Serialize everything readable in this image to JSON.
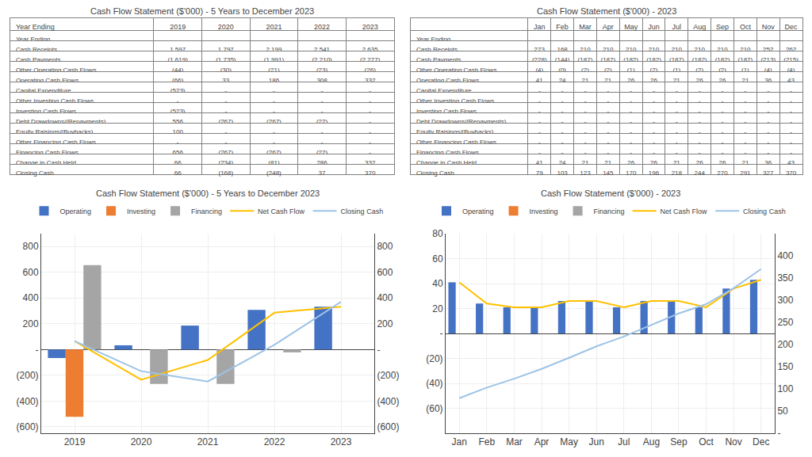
{
  "chart_data": [
    {
      "type": "table",
      "title": "Cash Flow Statement ($'000) - 5 Years to December 2023",
      "row_header": "Year Ending",
      "categories": [
        "2019",
        "2020",
        "2021",
        "2022",
        "2023"
      ],
      "series": [
        {
          "name": "Year Ending",
          "values": [
            null,
            null,
            null,
            null,
            null
          ]
        },
        {
          "name": "Cash Receipts",
          "values": [
            1597,
            1797,
            2199,
            2541,
            2635
          ],
          "value_labels": [
            "1,597",
            "1,797",
            "2,199",
            "2,541",
            "2,635"
          ]
        },
        {
          "name": "Cash Payments",
          "values": [
            -1619,
            -1735,
            -1991,
            -2210,
            -2277
          ],
          "value_labels": [
            "(1,619)",
            "(1,735)",
            "(1,991)",
            "(2,210)",
            "(2,277)"
          ]
        },
        {
          "name": "Other Operating Cash Flows",
          "values": [
            -44,
            -30,
            -21,
            -23,
            -26
          ],
          "value_labels": [
            "(44)",
            "(30)",
            "(21)",
            "(23)",
            "(26)"
          ]
        },
        {
          "name": "Operating Cash Flows",
          "values": [
            -66,
            33,
            186,
            308,
            332
          ],
          "value_labels": [
            "(66)",
            "33",
            "186",
            "308",
            "332"
          ]
        },
        {
          "name": "Capital Expenditure",
          "values": [
            -523,
            null,
            null,
            null,
            null
          ],
          "value_labels": [
            "(523)",
            "-",
            "-",
            "-",
            "-"
          ]
        },
        {
          "name": "Other Investing Cash Flows",
          "values": [
            null,
            null,
            null,
            null,
            null
          ],
          "value_labels": [
            "-",
            "-",
            "-",
            "-",
            "-"
          ]
        },
        {
          "name": "Investing Cash Flows",
          "values": [
            -523,
            null,
            null,
            null,
            null
          ],
          "value_labels": [
            "(523)",
            "-",
            "-",
            "-",
            "-"
          ]
        },
        {
          "name": "Debt Drawdowns/(Repayments)",
          "values": [
            556,
            -267,
            -267,
            -22,
            null
          ],
          "value_labels": [
            "556",
            "(267)",
            "(267)",
            "(22)",
            "-"
          ]
        },
        {
          "name": "Equity Raisings/(Buybacks)",
          "values": [
            100,
            null,
            null,
            null,
            null
          ],
          "value_labels": [
            "100",
            "-",
            "-",
            "-",
            "-"
          ]
        },
        {
          "name": "Other Financing Cash Flows",
          "values": [
            null,
            null,
            null,
            null,
            null
          ],
          "value_labels": [
            "-",
            "-",
            "-",
            "-",
            "-"
          ]
        },
        {
          "name": "Financing Cash Flows",
          "values": [
            656,
            -267,
            -267,
            -22,
            null
          ],
          "value_labels": [
            "656",
            "(267)",
            "(267)",
            "(22)",
            "-"
          ]
        },
        {
          "name": "Change in Cash Held",
          "values": [
            66,
            -234,
            -81,
            286,
            332
          ],
          "value_labels": [
            "66",
            "(234)",
            "(81)",
            "286",
            "332"
          ]
        },
        {
          "name": "Closing Cash",
          "values": [
            66,
            -168,
            -248,
            37,
            370
          ],
          "value_labels": [
            "66",
            "(168)",
            "(248)",
            "37",
            "370"
          ]
        }
      ]
    },
    {
      "type": "table",
      "title": "Cash Flow Statement ($'000) - 2023",
      "categories": [
        "Jan",
        "Feb",
        "Mar",
        "Apr",
        "May",
        "Jun",
        "Jul",
        "Aug",
        "Sep",
        "Oct",
        "Nov",
        "Dec"
      ],
      "series": [
        {
          "name": "Year Ending",
          "values": [
            null,
            null,
            null,
            null,
            null,
            null,
            null,
            null,
            null,
            null,
            null,
            null
          ]
        },
        {
          "name": "Cash Receipts",
          "values": [
            273,
            168,
            210,
            210,
            210,
            210,
            210,
            210,
            210,
            210,
            252,
            262
          ],
          "value_labels": [
            "273",
            "168",
            "210",
            "210",
            "210",
            "210",
            "210",
            "210",
            "210",
            "210",
            "252",
            "262"
          ]
        },
        {
          "name": "Cash Payments",
          "values": [
            -228,
            -144,
            -187,
            -187,
            -182,
            -182,
            -187,
            -182,
            -182,
            -187,
            -213,
            -215
          ],
          "value_labels": [
            "(228)",
            "(144)",
            "(187)",
            "(187)",
            "(182)",
            "(182)",
            "(187)",
            "(182)",
            "(182)",
            "(187)",
            "(213)",
            "(215)"
          ]
        },
        {
          "name": "Other Operating Cash Flows",
          "values": [
            -4,
            0,
            -2,
            -2,
            -1,
            -2,
            -1,
            -2,
            -2,
            -1,
            -4,
            -4
          ],
          "value_labels": [
            "(4)",
            "(0)",
            "(2)",
            "(2)",
            "(1)",
            "(2)",
            "(1)",
            "(2)",
            "(2)",
            "(1)",
            "(4)",
            "(4)"
          ]
        },
        {
          "name": "Operating Cash Flows",
          "values": [
            41,
            24,
            21,
            21,
            26,
            26,
            21,
            26,
            26,
            21,
            36,
            43
          ],
          "value_labels": [
            "41",
            "24",
            "21",
            "21",
            "26",
            "26",
            "21",
            "26",
            "26",
            "21",
            "36",
            "43"
          ]
        },
        {
          "name": "Capital Expenditure",
          "values": [
            null,
            null,
            null,
            null,
            null,
            null,
            null,
            null,
            null,
            null,
            null,
            null
          ],
          "value_labels": [
            "-",
            "-",
            "-",
            "-",
            "-",
            "-",
            "-",
            "-",
            "-",
            "-",
            "-",
            "-"
          ]
        },
        {
          "name": "Other Investing Cash Flows",
          "values": [
            null,
            null,
            null,
            null,
            null,
            null,
            null,
            null,
            null,
            null,
            null,
            null
          ],
          "value_labels": [
            "-",
            "-",
            "-",
            "-",
            "-",
            "-",
            "-",
            "-",
            "-",
            "-",
            "-",
            "-"
          ]
        },
        {
          "name": "Investing Cash Flows",
          "values": [
            null,
            null,
            null,
            null,
            null,
            null,
            null,
            null,
            null,
            null,
            null,
            null
          ],
          "value_labels": [
            "-",
            "-",
            "-",
            "-",
            "-",
            "-",
            "-",
            "-",
            "-",
            "-",
            "-",
            "-"
          ]
        },
        {
          "name": "Debt Drawdowns/(Repayments)",
          "values": [
            null,
            null,
            null,
            null,
            null,
            null,
            null,
            null,
            null,
            null,
            null,
            null
          ],
          "value_labels": [
            "-",
            "-",
            "-",
            "-",
            "-",
            "-",
            "-",
            "-",
            "-",
            "-",
            "-",
            "-"
          ]
        },
        {
          "name": "Equity Raisings/(Buybacks)",
          "values": [
            null,
            null,
            null,
            null,
            null,
            null,
            null,
            null,
            null,
            null,
            null,
            null
          ],
          "value_labels": [
            "-",
            "-",
            "-",
            "-",
            "-",
            "-",
            "-",
            "-",
            "-",
            "-",
            "-",
            "-"
          ]
        },
        {
          "name": "Other Financing Cash Flows",
          "values": [
            null,
            null,
            null,
            null,
            null,
            null,
            null,
            null,
            null,
            null,
            null,
            null
          ],
          "value_labels": [
            "-",
            "-",
            "-",
            "-",
            "-",
            "-",
            "-",
            "-",
            "-",
            "-",
            "-",
            "-"
          ]
        },
        {
          "name": "Financing Cash Flows",
          "values": [
            null,
            null,
            null,
            null,
            null,
            null,
            null,
            null,
            null,
            null,
            null,
            null
          ],
          "value_labels": [
            "-",
            "-",
            "-",
            "-",
            "-",
            "-",
            "-",
            "-",
            "-",
            "-",
            "-",
            "-"
          ]
        },
        {
          "name": "Change in Cash Held",
          "values": [
            41,
            24,
            21,
            21,
            26,
            26,
            21,
            26,
            26,
            21,
            36,
            43
          ],
          "value_labels": [
            "41",
            "24",
            "21",
            "21",
            "26",
            "26",
            "21",
            "26",
            "26",
            "21",
            "36",
            "43"
          ]
        },
        {
          "name": "Closing Cash",
          "values": [
            79,
            103,
            123,
            145,
            170,
            196,
            218,
            244,
            270,
            291,
            327,
            370
          ],
          "value_labels": [
            "79",
            "103",
            "123",
            "145",
            "170",
            "196",
            "218",
            "244",
            "270",
            "291",
            "327",
            "370"
          ]
        }
      ]
    },
    {
      "type": "bar",
      "title": "Cash Flow Statement ($'000) - 5 Years to December 2023",
      "categories": [
        "2019",
        "2020",
        "2021",
        "2022",
        "2023"
      ],
      "series": [
        {
          "name": "Operating",
          "type": "bar",
          "color": "#4472C4",
          "values": [
            -66,
            33,
            186,
            308,
            332
          ]
        },
        {
          "name": "Investing",
          "type": "bar",
          "color": "#ED7D31",
          "values": [
            -523,
            0,
            0,
            0,
            0
          ]
        },
        {
          "name": "Financing",
          "type": "bar",
          "color": "#A5A5A5",
          "values": [
            656,
            -267,
            -267,
            -22,
            0
          ]
        },
        {
          "name": "Net Cash Flow",
          "type": "line",
          "color": "#FFC000",
          "values": [
            66,
            -234,
            -81,
            286,
            332
          ]
        },
        {
          "name": "Closing Cash",
          "type": "line",
          "color": "#9DC3E6",
          "axis": "y2",
          "values": [
            66,
            -168,
            -248,
            37,
            370
          ]
        }
      ],
      "ylim": [
        -650,
        900
      ],
      "yticks": [
        {
          "value": -600,
          "label": "(600)"
        },
        {
          "value": -400,
          "label": "(400)"
        },
        {
          "value": -200,
          "label": "(200)"
        },
        {
          "value": 0,
          "label": "-"
        },
        200,
        400,
        600,
        800
      ],
      "y2lim": [
        -650,
        900
      ],
      "y2ticks": [
        {
          "value": -600,
          "label": "(600)"
        },
        {
          "value": -400,
          "label": "(400)"
        },
        {
          "value": -200,
          "label": "(200)"
        },
        {
          "value": 0,
          "label": "-"
        },
        200,
        400,
        600,
        800
      ],
      "grid": true,
      "legend": "top"
    },
    {
      "type": "bar",
      "title": "Cash Flow Statement ($'000) - 2023",
      "categories": [
        "Jan",
        "Feb",
        "Mar",
        "Apr",
        "May",
        "Jun",
        "Jul",
        "Aug",
        "Sep",
        "Oct",
        "Nov",
        "Dec"
      ],
      "series": [
        {
          "name": "Operating",
          "type": "bar",
          "color": "#4472C4",
          "values": [
            41,
            24,
            21,
            21,
            26,
            26,
            21,
            26,
            26,
            21,
            36,
            43
          ]
        },
        {
          "name": "Investing",
          "type": "bar",
          "color": "#ED7D31",
          "values": [
            0,
            0,
            0,
            0,
            0,
            0,
            0,
            0,
            0,
            0,
            0,
            0
          ]
        },
        {
          "name": "Financing",
          "type": "bar",
          "color": "#A5A5A5",
          "values": [
            0,
            0,
            0,
            0,
            0,
            0,
            0,
            0,
            0,
            0,
            0,
            0
          ]
        },
        {
          "name": "Net Cash Flow",
          "type": "line",
          "color": "#FFC000",
          "values": [
            41,
            24,
            21,
            21,
            26,
            26,
            21,
            26,
            26,
            21,
            36,
            43
          ]
        },
        {
          "name": "Closing Cash",
          "type": "line",
          "color": "#9DC3E6",
          "axis": "y2",
          "values": [
            79,
            103,
            123,
            145,
            170,
            196,
            218,
            244,
            270,
            291,
            327,
            370
          ]
        }
      ],
      "ylim": [
        -80,
        80
      ],
      "yticks": [
        {
          "value": -60,
          "label": "(60)"
        },
        {
          "value": -40,
          "label": "(40)"
        },
        {
          "value": -20,
          "label": "(20)"
        },
        {
          "value": 0,
          "label": "-"
        },
        20,
        40,
        60,
        80
      ],
      "y2lim": [
        0,
        450
      ],
      "y2ticks": [
        {
          "value": 0,
          "label": "-"
        },
        50,
        100,
        150,
        200,
        250,
        300,
        350,
        400
      ],
      "grid": true,
      "legend": "top"
    }
  ]
}
